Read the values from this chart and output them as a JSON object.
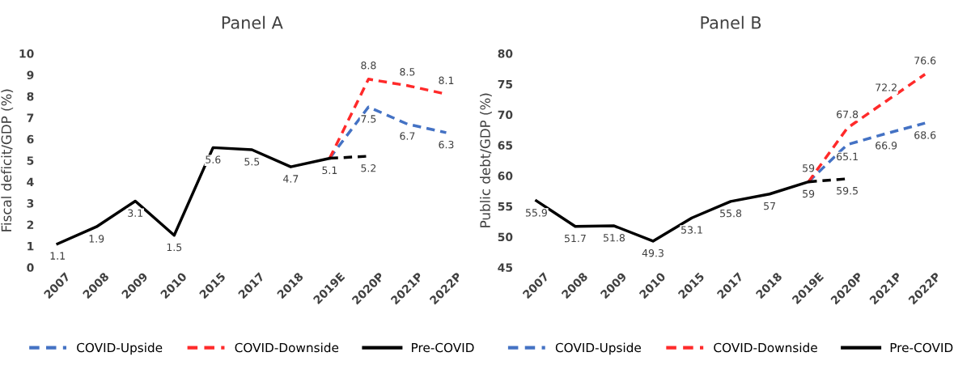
{
  "chart_data": [
    {
      "type": "line",
      "title": "Panel A",
      "ylabel": "Fiscal deficit/GDP (%)",
      "categories": [
        "2007",
        "2008",
        "2009",
        "2010",
        "2015",
        "2017",
        "2018",
        "2019E",
        "2020P",
        "2021P",
        "2022P"
      ],
      "series": [
        {
          "name": "COVID-Upside",
          "color": "#4472c4",
          "line_style": "dashed",
          "values": [
            null,
            null,
            null,
            null,
            null,
            null,
            null,
            5.1,
            7.5,
            6.7,
            6.3
          ],
          "value_labels": [
            null,
            null,
            null,
            null,
            null,
            null,
            null,
            null,
            "7.5",
            "6.7",
            "6.3"
          ]
        },
        {
          "name": "COVID-Downside",
          "color": "#ff2a2a",
          "line_style": "dashed",
          "values": [
            null,
            null,
            null,
            null,
            null,
            null,
            null,
            5.1,
            8.8,
            8.5,
            8.1
          ],
          "value_labels": [
            null,
            null,
            null,
            null,
            null,
            null,
            null,
            null,
            "8.8",
            "8.5",
            "8.1"
          ]
        },
        {
          "name": "Pre-COVID",
          "color": "#000000",
          "line_style": "solid",
          "values": [
            1.1,
            1.9,
            3.1,
            1.5,
            5.6,
            5.5,
            4.7,
            5.1,
            null,
            null,
            null
          ],
          "value_labels": [
            "1.1",
            "1.9",
            "3.1",
            "1.5",
            "5.6",
            "5.5",
            "4.7",
            "5.1",
            null,
            null,
            null
          ]
        },
        {
          "color": "#000000",
          "line_style": "dashed",
          "values": [
            null,
            null,
            null,
            null,
            null,
            null,
            null,
            5.1,
            5.2,
            null,
            null
          ],
          "value_labels": [
            null,
            null,
            null,
            null,
            null,
            null,
            null,
            null,
            "5.2",
            null,
            null
          ]
        }
      ],
      "ylim": [
        0,
        10
      ],
      "yticks": [
        0,
        1,
        2,
        3,
        4,
        5,
        6,
        7,
        8,
        9,
        10
      ],
      "grid": false,
      "legend": "bottom",
      "marker": "none"
    },
    {
      "type": "line",
      "title": "Panel B",
      "ylabel": "Public debt/GDP (%)",
      "categories": [
        "2007",
        "2008",
        "2009",
        "2010",
        "2015",
        "2017",
        "2018",
        "2019E",
        "2020P",
        "2021P",
        "2022P"
      ],
      "series": [
        {
          "name": "COVID-Upside",
          "color": "#4472c4",
          "line_style": "dashed",
          "values": [
            null,
            null,
            null,
            null,
            null,
            null,
            null,
            59,
            65.1,
            66.9,
            68.6
          ],
          "value_labels": [
            null,
            null,
            null,
            null,
            null,
            null,
            null,
            null,
            "65.1",
            "66.9",
            "68.6"
          ]
        },
        {
          "name": "COVID-Downside",
          "color": "#ff2a2a",
          "line_style": "dashed",
          "values": [
            null,
            null,
            null,
            null,
            null,
            null,
            null,
            59,
            67.8,
            72.2,
            76.6
          ],
          "value_labels": [
            null,
            null,
            null,
            null,
            null,
            null,
            null,
            "59",
            "67.8",
            "72.2",
            "76.6"
          ]
        },
        {
          "name": "Pre-COVID",
          "color": "#000000",
          "line_style": "solid",
          "values": [
            55.9,
            51.7,
            51.8,
            49.3,
            53.1,
            55.8,
            57,
            59,
            null,
            null,
            null
          ],
          "value_labels": [
            "55.9",
            "51.7",
            "51.8",
            "49.3",
            "53.1",
            "55.8",
            "57",
            "59",
            null,
            null,
            null
          ]
        },
        {
          "color": "#000000",
          "line_style": "dashed",
          "values": [
            null,
            null,
            null,
            null,
            null,
            null,
            null,
            59,
            59.5,
            null,
            null
          ],
          "value_labels": [
            null,
            null,
            null,
            null,
            null,
            null,
            null,
            null,
            "59.5",
            null,
            null
          ]
        }
      ],
      "ylim": [
        45,
        80
      ],
      "yticks": [
        45,
        50,
        55,
        60,
        65,
        70,
        75,
        80
      ],
      "grid": false,
      "legend": "bottom",
      "marker": "none"
    }
  ]
}
